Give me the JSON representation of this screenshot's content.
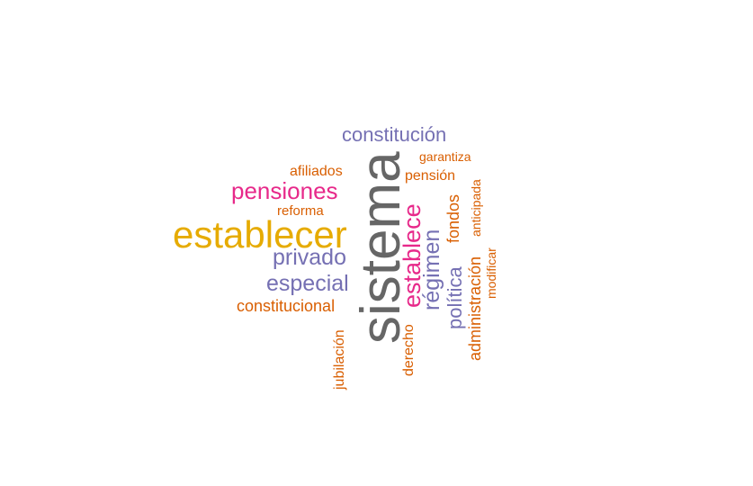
{
  "palette": {
    "gray": "#666666",
    "gold": "#e6ab02",
    "magenta": "#e7298a",
    "purple": "#7570b3",
    "orange": "#d95f02"
  },
  "words": {
    "sistema": "sistema",
    "establecer": "establecer",
    "pensiones": "pensiones",
    "establece": "establece",
    "constitucion": "constitución",
    "privado": "privado",
    "especial": "especial",
    "regimen": "régimen",
    "politica": "política",
    "administracion": "administración",
    "constitucional": "constitucional",
    "afiliados": "afiliados",
    "pension": "pensión",
    "fondos": "fondos",
    "jubilacion": "jubilación",
    "derecho": "derecho",
    "reforma": "reforma",
    "garantiza": "garantiza",
    "anticipada": "anticipada",
    "modificar": "modificar"
  }
}
